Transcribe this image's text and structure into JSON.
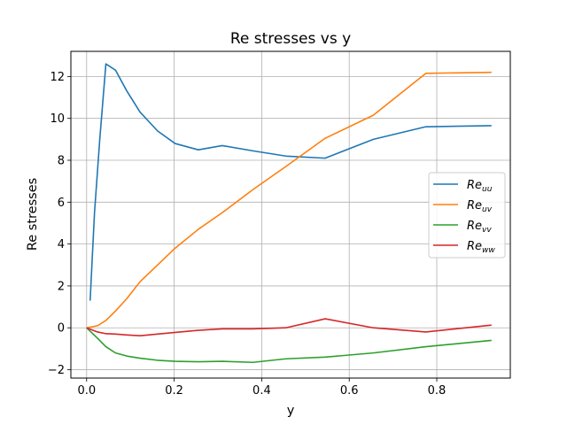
{
  "chart_data": {
    "type": "line",
    "title": "Re stresses vs y",
    "xlabel": "y",
    "ylabel": "Re stresses",
    "xlim": [
      -0.036,
      0.968
    ],
    "ylim": [
      -2.4,
      13.2
    ],
    "xticks": [
      0.0,
      0.2,
      0.4,
      0.6,
      0.8
    ],
    "xtick_labels": [
      "0.0",
      "0.2",
      "0.4",
      "0.6",
      "0.8"
    ],
    "yticks": [
      -2,
      0,
      2,
      4,
      6,
      8,
      10,
      12
    ],
    "ytick_labels": [
      "−2",
      "0",
      "2",
      "4",
      "6",
      "8",
      "10",
      "12"
    ],
    "grid": true,
    "legend_position": "center-right",
    "series": [
      {
        "name": "Re",
        "subscript": "uu",
        "color": "#1f77b4",
        "x": [
          0.008,
          0.018,
          0.03,
          0.044,
          0.066,
          0.092,
          0.122,
          0.162,
          0.202,
          0.255,
          0.31,
          0.38,
          0.455,
          0.545,
          0.655,
          0.775,
          0.925
        ],
        "y": [
          1.3,
          5.5,
          9.0,
          12.6,
          12.3,
          11.3,
          10.3,
          9.4,
          8.8,
          8.5,
          8.7,
          8.45,
          8.2,
          8.1,
          9.0,
          9.6,
          9.65
        ]
      },
      {
        "name": "Re",
        "subscript": "uv",
        "color": "#ff7f0e",
        "x": [
          0.0,
          0.025,
          0.044,
          0.066,
          0.092,
          0.122,
          0.162,
          0.202,
          0.255,
          0.31,
          0.38,
          0.455,
          0.545,
          0.655,
          0.775,
          0.925
        ],
        "y": [
          0.0,
          0.1,
          0.35,
          0.8,
          1.4,
          2.2,
          3.0,
          3.8,
          4.7,
          5.5,
          6.6,
          7.7,
          9.05,
          10.15,
          12.15,
          12.2
        ]
      },
      {
        "name": "Re",
        "subscript": "vv",
        "color": "#2ca02c",
        "x": [
          0.0,
          0.025,
          0.044,
          0.066,
          0.092,
          0.122,
          0.162,
          0.202,
          0.255,
          0.31,
          0.38,
          0.455,
          0.545,
          0.655,
          0.775,
          0.925
        ],
        "y": [
          0.0,
          -0.5,
          -0.9,
          -1.2,
          -1.35,
          -1.45,
          -1.55,
          -1.6,
          -1.62,
          -1.6,
          -1.65,
          -1.48,
          -1.4,
          -1.2,
          -0.9,
          -0.6
        ]
      },
      {
        "name": "Re",
        "subscript": "ww",
        "color": "#d62728",
        "x": [
          0.0,
          0.025,
          0.044,
          0.066,
          0.092,
          0.122,
          0.162,
          0.202,
          0.255,
          0.31,
          0.38,
          0.455,
          0.545,
          0.655,
          0.775,
          0.925
        ],
        "y": [
          0.0,
          -0.2,
          -0.28,
          -0.3,
          -0.34,
          -0.38,
          -0.3,
          -0.22,
          -0.12,
          -0.05,
          -0.05,
          0.0,
          0.43,
          0.0,
          -0.2,
          0.13
        ]
      }
    ]
  }
}
